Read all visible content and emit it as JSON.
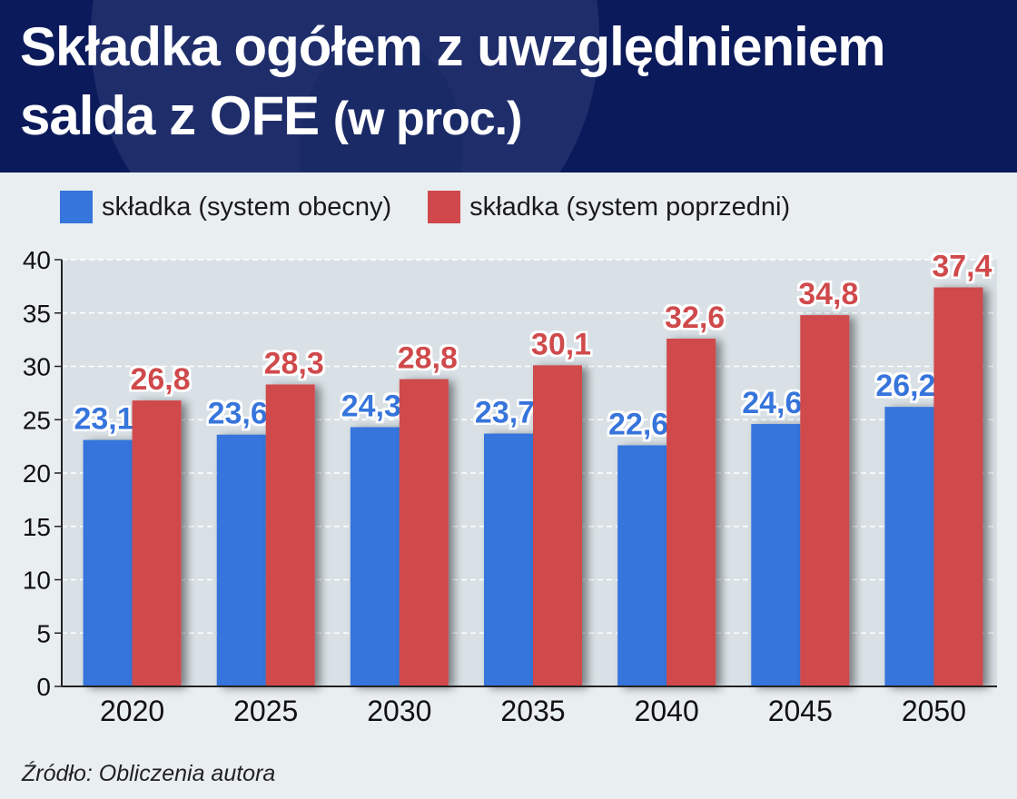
{
  "chart_data": {
    "type": "bar",
    "title": "Składka ogółem z uwzględnieniem salda z OFE",
    "title_unit": "(w proc.)",
    "categories": [
      "2020",
      "2025",
      "2030",
      "2035",
      "2040",
      "2045",
      "2050"
    ],
    "series": [
      {
        "name": "składka (system obecny)",
        "values": [
          23.1,
          23.6,
          24.3,
          23.7,
          22.6,
          24.6,
          26.2
        ],
        "labels": [
          "23,1",
          "23,6",
          "24,3",
          "23,7",
          "22,6",
          "24,6",
          "26,2"
        ],
        "color": "#3575dc"
      },
      {
        "name": "składka (system poprzedni)",
        "values": [
          26.8,
          28.3,
          28.8,
          30.1,
          32.6,
          34.8,
          37.4
        ],
        "labels": [
          "26,8",
          "28,3",
          "28,8",
          "30,1",
          "32,6",
          "34,8",
          "37,4"
        ],
        "color": "#d0484c"
      }
    ],
    "ylim": [
      0,
      40
    ],
    "yticks": [
      "0",
      "5",
      "10",
      "15",
      "20",
      "25",
      "30",
      "35",
      "40"
    ],
    "grid": true,
    "legend": "top-left",
    "source": "Źródło: Obliczenia autora"
  }
}
